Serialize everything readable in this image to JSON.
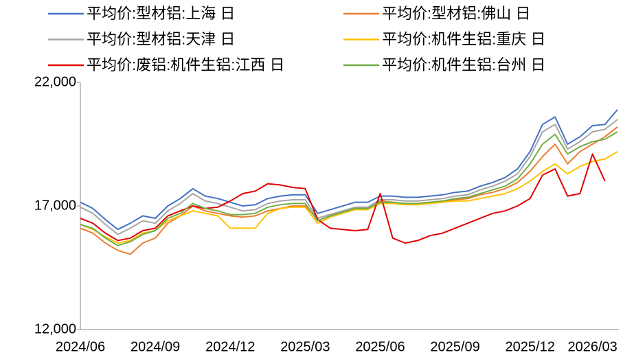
{
  "chart_data": {
    "type": "line",
    "categories": [
      "2024/06",
      null,
      null,
      null,
      null,
      null,
      "2024/09",
      null,
      null,
      null,
      null,
      null,
      "2024/12",
      null,
      null,
      null,
      null,
      null,
      "2025/03",
      null,
      null,
      null,
      null,
      null,
      "2025/06",
      null,
      null,
      null,
      null,
      null,
      "2025/09",
      null,
      null,
      null,
      null,
      null,
      "2025/12",
      null,
      null,
      null,
      null,
      "2026/03",
      null,
      null
    ],
    "ylim": [
      12000,
      22000
    ],
    "yticks": [
      {
        "value": 12000,
        "label": "12,000"
      },
      {
        "value": 17000,
        "label": "17,000"
      },
      {
        "value": 22000,
        "label": "22,000"
      }
    ],
    "series": [
      {
        "name": "平均价:型材铝:上海 日",
        "color": "#4472c4",
        "values": [
          17150,
          16900,
          16450,
          16050,
          16300,
          16600,
          16500,
          17000,
          17300,
          17700,
          17400,
          17300,
          17150,
          17000,
          17050,
          17300,
          17400,
          17450,
          17450,
          16700,
          16850,
          17000,
          17150,
          17150,
          17400,
          17400,
          17350,
          17350,
          17400,
          17450,
          17550,
          17600,
          17800,
          17950,
          18150,
          18500,
          19200,
          20300,
          20600,
          19500,
          19800,
          20250,
          20300,
          20900
        ]
      },
      {
        "name": "平均价:型材铝:佛山 日",
        "color": "#ed7d31",
        "values": [
          16100,
          15900,
          15500,
          15200,
          15050,
          15500,
          15700,
          16300,
          16600,
          17000,
          16800,
          16700,
          16600,
          16550,
          16600,
          16800,
          16900,
          17000,
          17000,
          16500,
          16650,
          16800,
          16900,
          16900,
          17200,
          17150,
          17100,
          17100,
          17150,
          17200,
          17250,
          17300,
          17450,
          17550,
          17700,
          17950,
          18400,
          19000,
          19500,
          18700,
          19200,
          19500,
          19800,
          20200
        ]
      },
      {
        "name": "平均价:型材铝:天津 日",
        "color": "#a5a5a5",
        "values": [
          16950,
          16700,
          16250,
          15850,
          16100,
          16400,
          16300,
          16800,
          17100,
          17500,
          17200,
          17100,
          16950,
          16800,
          16850,
          17100,
          17200,
          17250,
          17250,
          16500,
          16650,
          16800,
          16950,
          16950,
          17250,
          17250,
          17200,
          17200,
          17250,
          17300,
          17400,
          17450,
          17650,
          17800,
          18000,
          18300,
          19000,
          20000,
          20300,
          19300,
          19600,
          20000,
          20100,
          20500
        ]
      },
      {
        "name": "平均价:机件生铝:重庆 日",
        "color": "#ffc000",
        "values": [
          16250,
          16050,
          15750,
          15500,
          15600,
          15900,
          16000,
          16400,
          16600,
          16800,
          16700,
          16600,
          16100,
          16100,
          16100,
          16700,
          16900,
          16950,
          16950,
          16300,
          16550,
          16700,
          16850,
          16850,
          17100,
          17100,
          17050,
          17050,
          17100,
          17150,
          17200,
          17200,
          17300,
          17400,
          17500,
          17700,
          18000,
          18400,
          18700,
          18300,
          18600,
          18800,
          18900,
          19200
        ]
      },
      {
        "name": "平均价:废铝:机件生铝:江西 日",
        "color": "#e00000",
        "values": [
          16500,
          16300,
          15900,
          15600,
          15700,
          16000,
          16100,
          16600,
          16800,
          17000,
          16900,
          16950,
          17200,
          17500,
          17600,
          17900,
          17850,
          17750,
          17700,
          16450,
          16100,
          16050,
          16000,
          16050,
          17500,
          15700,
          15500,
          15600,
          15800,
          15900,
          16100,
          16300,
          16500,
          16700,
          16800,
          17000,
          17300,
          18250,
          18500,
          17400,
          17500,
          19100,
          18000,
          null
        ]
      },
      {
        "name": "平均价:机件生铝:台州 日",
        "color": "#70ad47",
        "values": [
          16250,
          16100,
          15700,
          15400,
          15550,
          15850,
          16000,
          16500,
          16700,
          17100,
          16900,
          16800,
          16650,
          16650,
          16700,
          16950,
          17050,
          17100,
          17100,
          16400,
          16600,
          16750,
          16900,
          16900,
          17150,
          17150,
          17100,
          17100,
          17150,
          17200,
          17300,
          17350,
          17500,
          17650,
          17800,
          18100,
          18700,
          19500,
          19900,
          19100,
          19400,
          19600,
          19700,
          20000
        ]
      }
    ]
  }
}
